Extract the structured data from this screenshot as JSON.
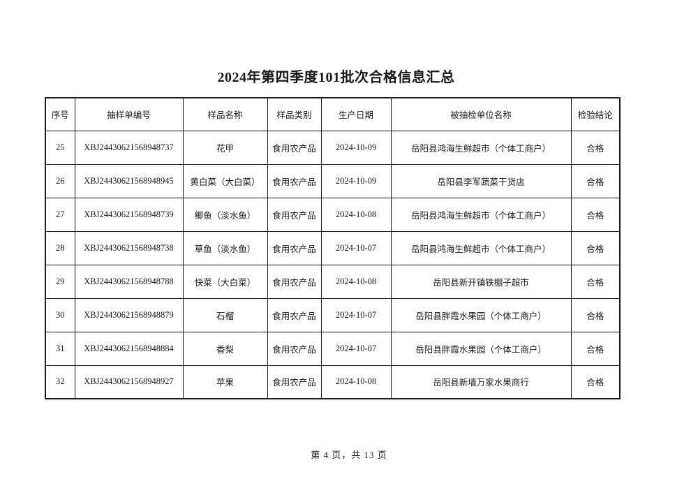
{
  "document": {
    "title": "2024年第四季度101批次合格信息汇总",
    "footer": "第 4 页，共 13 页"
  },
  "table": {
    "columns": [
      "序号",
      "抽样单编号",
      "样品名称",
      "样品类别",
      "生产日期",
      "被抽检单位名称",
      "检验结论"
    ],
    "column_names": [
      "index",
      "sample-form-number",
      "sample-name",
      "sample-category",
      "production-date",
      "sampled-unit-name",
      "inspection-conclusion"
    ],
    "rows": [
      [
        "25",
        "XBJ24430621568948737",
        "花甲",
        "食用农产品",
        "2024-10-09",
        "岳阳县鸿海生鲜超市（个体工商户）",
        "合格"
      ],
      [
        "26",
        "XBJ24430621568948945",
        "黄白菜（大白菜）",
        "食用农产品",
        "2024-10-09",
        "岳阳县李军蔬菜干货店",
        "合格"
      ],
      [
        "27",
        "XBJ24430621568948739",
        "鲫鱼（淡水鱼）",
        "食用农产品",
        "2024-10-08",
        "岳阳县鸿海生鲜超市（个体工商户）",
        "合格"
      ],
      [
        "28",
        "XBJ24430621568948738",
        "草鱼（淡水鱼）",
        "食用农产品",
        "2024-10-07",
        "岳阳县鸿海生鲜超市（个体工商户）",
        "合格"
      ],
      [
        "29",
        "XBJ24430621568948788",
        "快菜（大白菜）",
        "食用农产品",
        "2024-10-08",
        "岳阳县新开镇铁棚子超市",
        "合格"
      ],
      [
        "30",
        "XBJ24430621568948879",
        "石榴",
        "食用农产品",
        "2024-10-07",
        "岳阳县胖霞水果园（个体工商户）",
        "合格"
      ],
      [
        "31",
        "XBJ24430621568948884",
        "香梨",
        "食用农产品",
        "2024-10-07",
        "岳阳县胖霞水果园（个体工商户）",
        "合格"
      ],
      [
        "32",
        "XBJ24430621568948927",
        "苹果",
        "食用农产品",
        "2024-10-08",
        "岳阳县新墙万家水果商行",
        "合格"
      ]
    ]
  },
  "colors": {
    "text": "#1a1a1a",
    "border": "#1c1c1c",
    "background": "#ffffff"
  }
}
